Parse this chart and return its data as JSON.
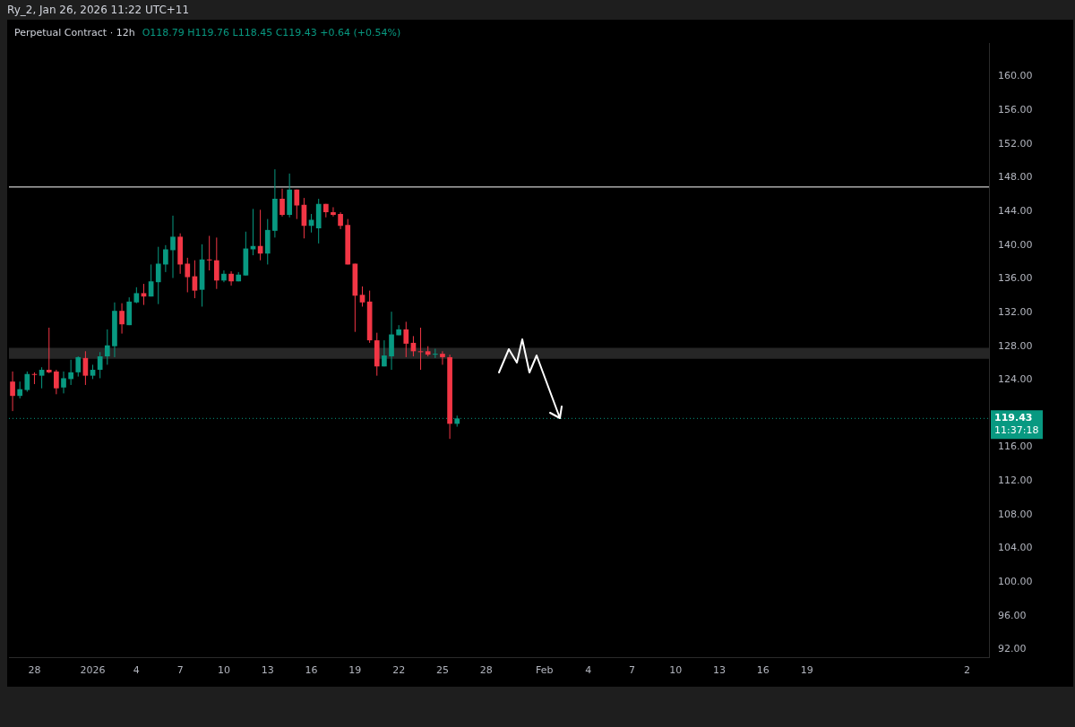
{
  "chart_data": {
    "type": "candlestick",
    "title": "Perpetual Contract · 12h",
    "subtitle": "O118.79 H119.76 L118.45 C119.43 +0.64 (+0.54%)",
    "annotations": [
      "Ry_2, Jan 26, 2026 11:22 UTC+11",
      "11:37:18"
    ],
    "x": [
      "2025-12-26T12:00",
      "2025-12-27T00:00",
      "2025-12-27T12:00",
      "2025-12-28T00:00",
      "2025-12-28T12:00",
      "2025-12-29T00:00",
      "2025-12-29T12:00",
      "2025-12-30T00:00",
      "2025-12-30T12:00",
      "2025-12-31T00:00",
      "2025-12-31T12:00",
      "2026-01-01T00:00",
      "2026-01-01T12:00",
      "2026-01-02T00:00",
      "2026-01-02T12:00",
      "2026-01-03T00:00",
      "2026-01-03T12:00",
      "2026-01-04T00:00",
      "2026-01-04T12:00",
      "2026-01-05T00:00",
      "2026-01-05T12:00",
      "2026-01-06T00:00",
      "2026-01-06T12:00",
      "2026-01-07T00:00",
      "2026-01-07T12:00",
      "2026-01-08T00:00",
      "2026-01-08T12:00",
      "2026-01-09T00:00",
      "2026-01-09T12:00",
      "2026-01-10T00:00",
      "2026-01-10T12:00",
      "2026-01-11T00:00",
      "2026-01-11T12:00",
      "2026-01-12T00:00",
      "2026-01-12T12:00",
      "2026-01-13T00:00",
      "2026-01-13T12:00",
      "2026-01-14T00:00",
      "2026-01-14T12:00",
      "2026-01-15T00:00",
      "2026-01-15T12:00",
      "2026-01-16T00:00",
      "2026-01-16T12:00",
      "2026-01-17T00:00",
      "2026-01-17T12:00",
      "2026-01-18T00:00",
      "2026-01-18T12:00",
      "2026-01-19T00:00",
      "2026-01-19T12:00",
      "2026-01-20T00:00",
      "2026-01-20T12:00",
      "2026-01-21T00:00",
      "2026-01-21T12:00",
      "2026-01-22T00:00",
      "2026-01-22T12:00",
      "2026-01-23T00:00",
      "2026-01-23T12:00",
      "2026-01-24T00:00",
      "2026-01-24T12:00",
      "2026-01-25T00:00",
      "2026-01-25T12:00",
      "2026-01-26T00:00"
    ],
    "ohlc": [
      [
        123.8,
        125.0,
        120.3,
        122.1
      ],
      [
        122.1,
        123.8,
        121.8,
        122.9
      ],
      [
        122.8,
        125.0,
        122.6,
        124.7
      ],
      [
        124.7,
        124.9,
        123.5,
        124.6
      ],
      [
        124.5,
        125.5,
        123.0,
        125.2
      ],
      [
        125.2,
        130.2,
        124.8,
        124.9
      ],
      [
        125.0,
        125.2,
        122.3,
        123.0
      ],
      [
        123.1,
        125.0,
        122.4,
        124.2
      ],
      [
        124.1,
        126.4,
        123.4,
        124.9
      ],
      [
        124.9,
        126.8,
        124.4,
        126.7
      ],
      [
        126.6,
        127.4,
        123.4,
        124.5
      ],
      [
        124.5,
        125.8,
        124.1,
        125.2
      ],
      [
        125.2,
        127.3,
        124.2,
        126.8
      ],
      [
        126.8,
        130.0,
        125.8,
        128.1
      ],
      [
        128.0,
        133.2,
        126.7,
        132.2
      ],
      [
        132.2,
        133.1,
        129.5,
        130.6
      ],
      [
        130.5,
        133.8,
        130.5,
        133.3
      ],
      [
        133.2,
        135.0,
        133.1,
        134.3
      ],
      [
        134.3,
        135.4,
        132.9,
        133.9
      ],
      [
        133.9,
        137.7,
        133.9,
        135.7
      ],
      [
        135.6,
        139.8,
        133.0,
        137.8
      ],
      [
        137.7,
        140.0,
        136.8,
        139.5
      ],
      [
        139.4,
        143.5,
        136.1,
        141.0
      ],
      [
        141.0,
        141.4,
        136.6,
        137.7
      ],
      [
        137.8,
        138.5,
        134.4,
        136.2
      ],
      [
        136.3,
        138.2,
        133.7,
        134.6
      ],
      [
        134.7,
        140.1,
        132.7,
        138.3
      ],
      [
        138.3,
        141.1,
        137.0,
        138.2
      ],
      [
        138.2,
        140.9,
        134.8,
        135.8
      ],
      [
        135.8,
        137.0,
        135.6,
        136.6
      ],
      [
        136.6,
        136.9,
        135.2,
        135.7
      ],
      [
        135.7,
        136.8,
        135.7,
        136.5
      ],
      [
        136.4,
        141.6,
        136.4,
        139.6
      ],
      [
        139.5,
        144.3,
        138.8,
        139.9
      ],
      [
        139.9,
        144.2,
        138.2,
        139.0
      ],
      [
        139.0,
        143.1,
        137.7,
        141.8
      ],
      [
        141.7,
        149.0,
        140.9,
        145.5
      ],
      [
        145.5,
        146.7,
        143.4,
        143.6
      ],
      [
        143.6,
        148.5,
        143.3,
        146.6
      ],
      [
        146.6,
        146.6,
        143.1,
        144.7
      ],
      [
        144.8,
        145.6,
        140.8,
        142.3
      ],
      [
        142.3,
        143.7,
        141.5,
        143.0
      ],
      [
        142.0,
        145.5,
        140.2,
        144.9
      ],
      [
        144.9,
        144.9,
        143.3,
        143.9
      ],
      [
        143.9,
        144.5,
        143.4,
        143.6
      ],
      [
        143.7,
        143.9,
        141.9,
        142.3
      ],
      [
        142.4,
        143.1,
        137.7,
        137.7
      ],
      [
        137.8,
        137.8,
        129.7,
        134.0
      ],
      [
        134.1,
        135.1,
        132.7,
        133.2
      ],
      [
        133.3,
        134.6,
        128.4,
        128.7
      ],
      [
        128.7,
        129.6,
        124.5,
        125.6
      ],
      [
        125.6,
        128.7,
        125.6,
        126.9
      ],
      [
        126.8,
        132.1,
        125.2,
        129.4
      ],
      [
        129.3,
        130.5,
        129.3,
        130.0
      ],
      [
        130.0,
        130.9,
        126.7,
        128.3
      ],
      [
        128.4,
        129.2,
        126.8,
        127.4
      ],
      [
        127.4,
        130.2,
        125.2,
        127.3
      ],
      [
        127.4,
        128.0,
        126.8,
        127.0
      ],
      [
        127.0,
        127.7,
        126.6,
        127.1
      ],
      [
        127.1,
        127.4,
        125.8,
        126.7
      ],
      [
        126.7,
        127.0,
        117.0,
        118.79
      ],
      [
        118.79,
        119.76,
        118.45,
        119.43
      ]
    ],
    "colors": [
      "#f23645",
      "#089981",
      "#089981",
      "#f23645",
      "#089981",
      "#f23645",
      "#f23645",
      "#089981",
      "#089981",
      "#089981",
      "#f23645",
      "#089981",
      "#089981",
      "#089981",
      "#089981",
      "#f23645",
      "#089981",
      "#089981",
      "#f23645",
      "#089981",
      "#089981",
      "#089981",
      "#089981",
      "#f23645",
      "#f23645",
      "#f23645",
      "#089981",
      "#f23645",
      "#f23645",
      "#089981",
      "#f23645",
      "#089981",
      "#089981",
      "#089981",
      "#f23645",
      "#089981",
      "#089981",
      "#f23645",
      "#089981",
      "#f23645",
      "#f23645",
      "#089981",
      "#089981",
      "#f23645",
      "#f23645",
      "#f23645",
      "#f23645",
      "#f23645",
      "#f23645",
      "#f23645",
      "#f23645",
      "#089981",
      "#089981",
      "#089981",
      "#f23645",
      "#f23645",
      "#f23645",
      "#f23645",
      "#089981",
      "#f23645",
      "#f23645",
      "#089981"
    ],
    "xlim": [
      "2025-12-26T06:00",
      "2026-03-03T12:00"
    ],
    "xticks": [
      {
        "value": "2025-12-28",
        "label": "28"
      },
      {
        "value": "2026-01-01",
        "label": "2026"
      },
      {
        "value": "2026-01-04",
        "label": "4"
      },
      {
        "value": "2026-01-07",
        "label": "7"
      },
      {
        "value": "2026-01-10",
        "label": "10"
      },
      {
        "value": "2026-01-13",
        "label": "13"
      },
      {
        "value": "2026-01-16",
        "label": "16"
      },
      {
        "value": "2026-01-19",
        "label": "19"
      },
      {
        "value": "2026-01-22",
        "label": "22"
      },
      {
        "value": "2026-01-25",
        "label": "25"
      },
      {
        "value": "2026-01-28",
        "label": "28"
      },
      {
        "value": "2026-02-01",
        "label": "Feb"
      },
      {
        "value": "2026-02-04",
        "label": "4"
      },
      {
        "value": "2026-02-07",
        "label": "7"
      },
      {
        "value": "2026-02-10",
        "label": "10"
      },
      {
        "value": "2026-02-13",
        "label": "13"
      },
      {
        "value": "2026-02-16",
        "label": "16"
      },
      {
        "value": "2026-02-19",
        "label": "19"
      },
      {
        "value": "2026-03-02",
        "label": "2"
      }
    ],
    "ylim": [
      91,
      164
    ],
    "yticks": [
      {
        "value": 92,
        "label": "92.00"
      },
      {
        "value": 96,
        "label": "96.00"
      },
      {
        "value": 100,
        "label": "100.00"
      },
      {
        "value": 104,
        "label": "104.00"
      },
      {
        "value": 108,
        "label": "108.00"
      },
      {
        "value": 112,
        "label": "112.00"
      },
      {
        "value": 116,
        "label": "116.00"
      },
      {
        "value": 124,
        "label": "124.00"
      },
      {
        "value": 128,
        "label": "128.00"
      },
      {
        "value": 132,
        "label": "132.00"
      },
      {
        "value": 136,
        "label": "136.00"
      },
      {
        "value": 140,
        "label": "140.00"
      },
      {
        "value": 144,
        "label": "144.00"
      },
      {
        "value": 148,
        "label": "148.00"
      },
      {
        "value": 152,
        "label": "152.00"
      },
      {
        "value": 156,
        "label": "156.00"
      },
      {
        "value": 160,
        "label": "160.00"
      }
    ],
    "ref_lines": [
      {
        "axis": "y",
        "value": 146.9,
        "color": "#ffffff",
        "line_style": "solid"
      },
      {
        "axis": "y",
        "value": 119.43,
        "label": "119.43",
        "color": "#089981",
        "line_style": "dotted"
      }
    ],
    "bands": [
      {
        "axis": "y",
        "from": 126.5,
        "to": 127.8,
        "color": "#262626"
      }
    ],
    "grid": false,
    "legend": false
  }
}
